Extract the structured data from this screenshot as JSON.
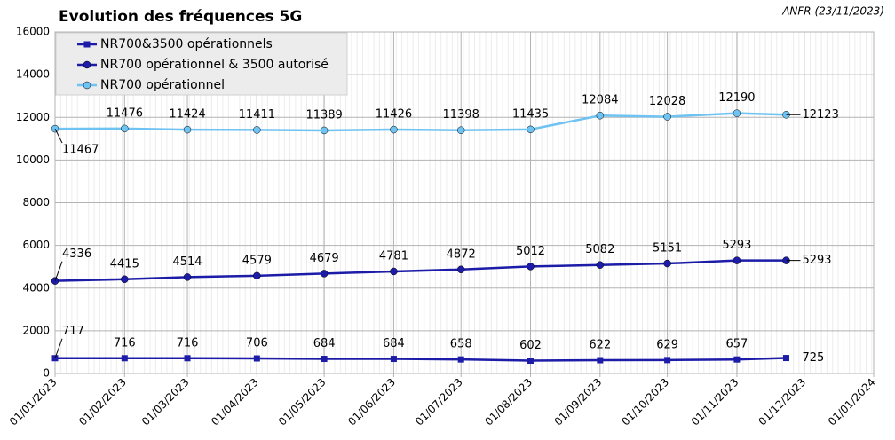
{
  "chart_data": {
    "type": "line",
    "title": "Evolution des fréquences 5G",
    "annotation": "ANFR (23/11/2023)",
    "x": [
      "01/01/2023",
      "01/02/2023",
      "01/03/2023",
      "01/04/2023",
      "01/05/2023",
      "01/06/2023",
      "01/07/2023",
      "01/08/2023",
      "01/09/2023",
      "01/10/2023",
      "01/11/2023",
      "23/11/2023"
    ],
    "series": [
      {
        "name": "NR700&3500 opérationnels",
        "color": "#1c1ca8",
        "marker": "square",
        "values": [
          717,
          716,
          716,
          706,
          684,
          684,
          658,
          602,
          622,
          629,
          657,
          725
        ]
      },
      {
        "name": "NR700 opérationnel & 3500 autorisé",
        "color": "#1c1ca8",
        "marker": "circle",
        "values": [
          4336,
          4415,
          4514,
          4579,
          4679,
          4781,
          4872,
          5012,
          5082,
          5151,
          5293,
          5293
        ]
      },
      {
        "name": "NR700 opérationnel",
        "color": "#6ec3f2",
        "marker": "circle",
        "values": [
          11467,
          11476,
          11424,
          11411,
          11389,
          11426,
          11398,
          11435,
          12084,
          12028,
          12190,
          12123
        ]
      }
    ],
    "xlim": [
      "01/01/2023",
      "01/01/2024"
    ],
    "xticks": [
      "01/01/2023",
      "01/02/2023",
      "01/03/2023",
      "01/04/2023",
      "01/05/2023",
      "01/06/2023",
      "01/07/2023",
      "01/08/2023",
      "01/09/2023",
      "01/10/2023",
      "01/11/2023",
      "01/12/2023",
      "01/01/2024"
    ],
    "ylim": [
      0,
      16000
    ],
    "yticks": [
      0,
      2000,
      4000,
      6000,
      8000,
      10000,
      12000,
      14000,
      16000
    ],
    "grid": true,
    "legend": "top-left"
  }
}
